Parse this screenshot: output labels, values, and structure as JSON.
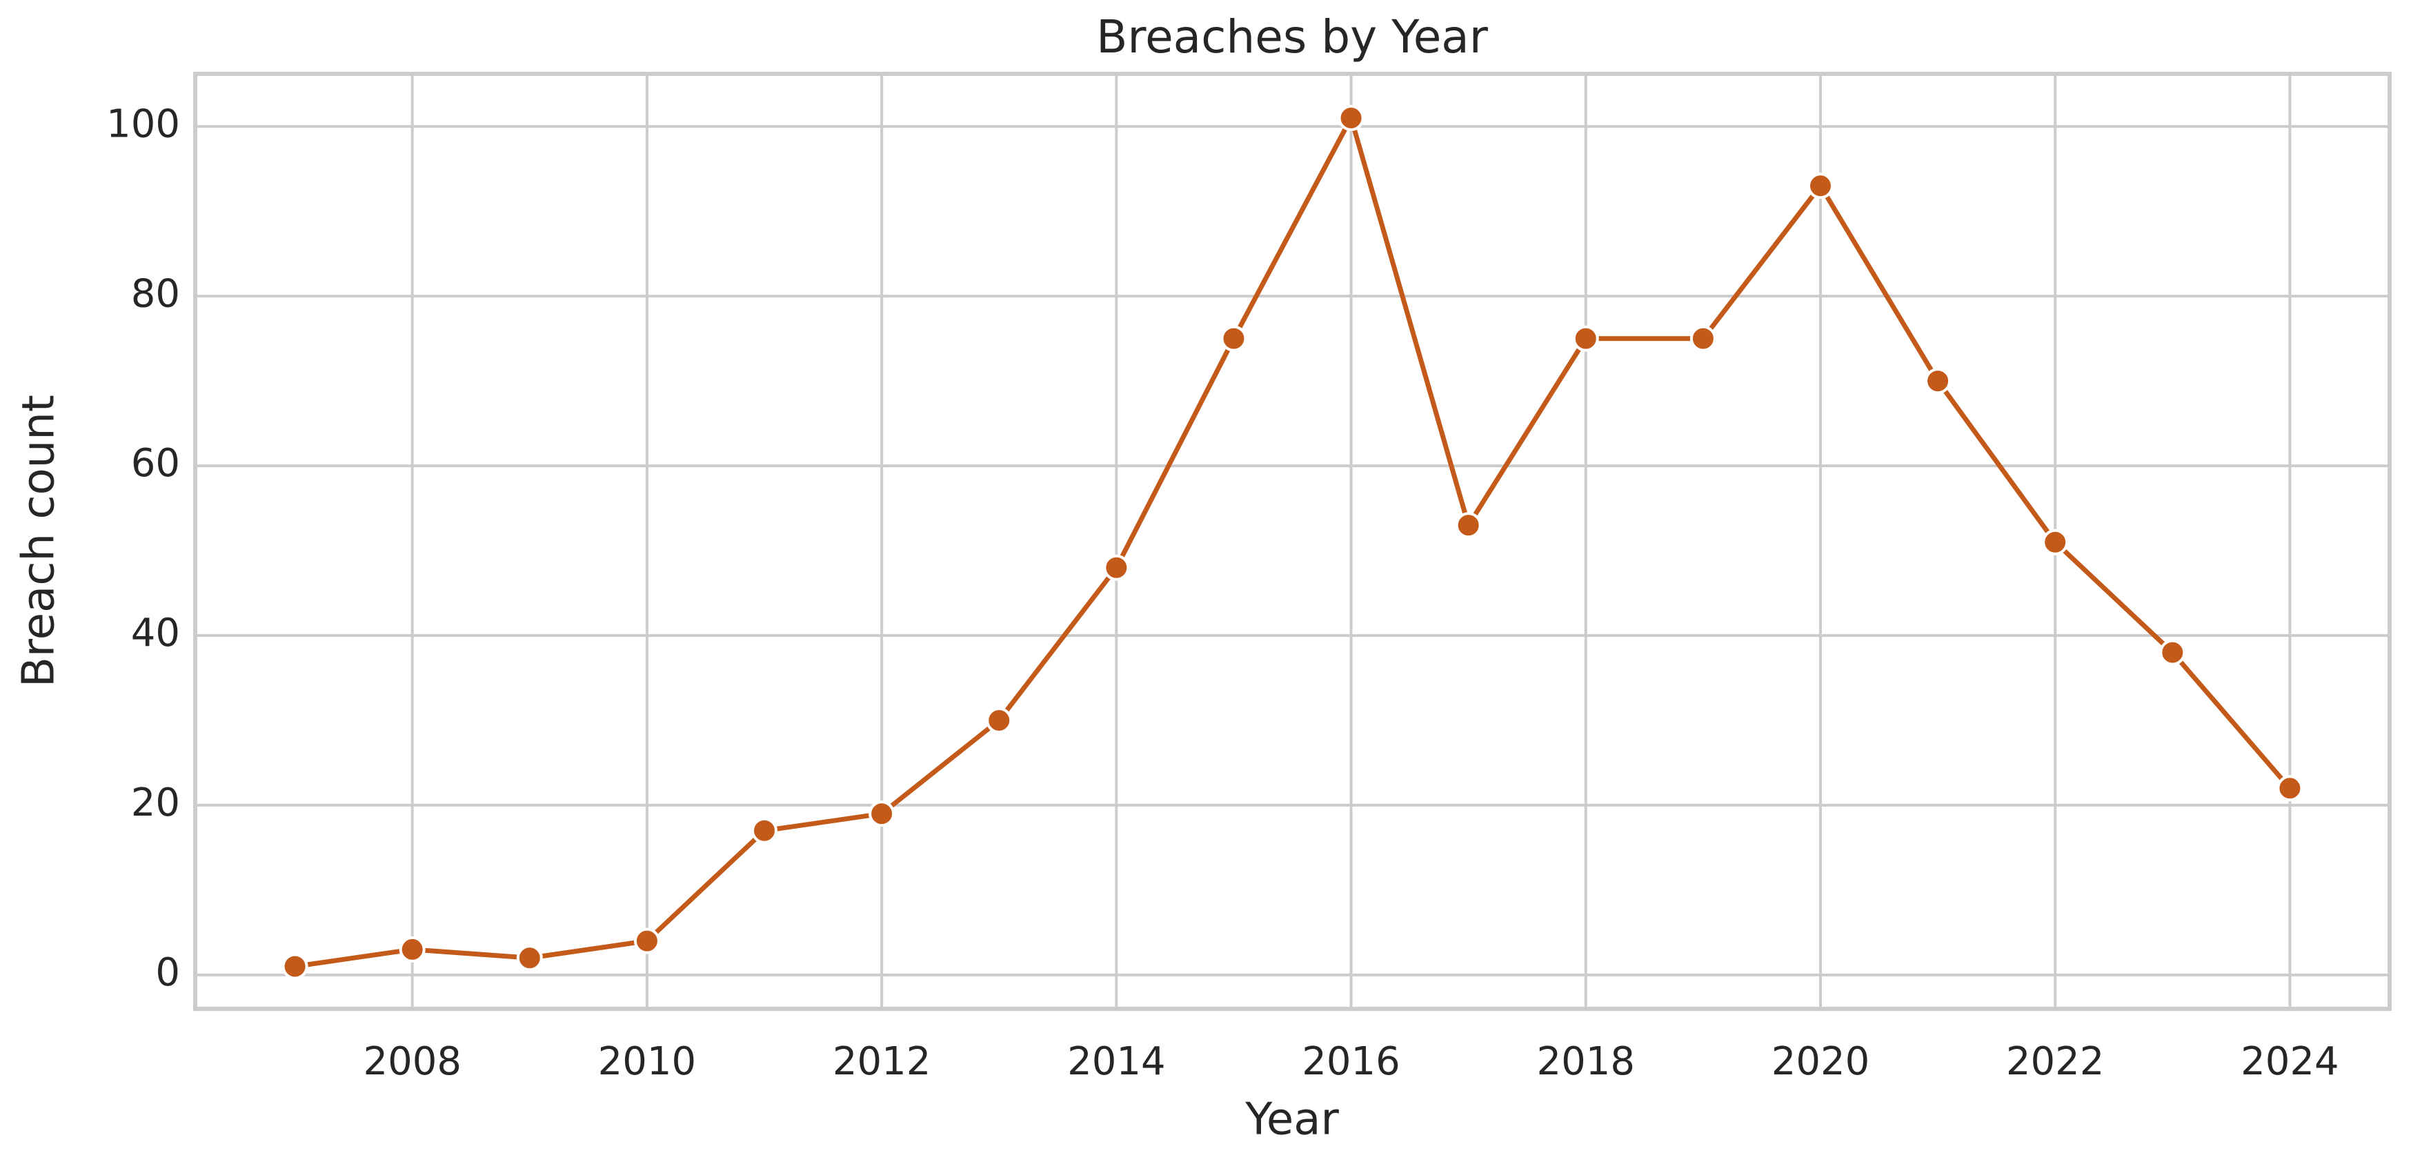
{
  "chart_data": {
    "type": "line",
    "title": "Breaches by Year",
    "x_label": "Year",
    "y_label": "Breach count",
    "x": [
      2007,
      2008,
      2009,
      2010,
      2011,
      2012,
      2013,
      2014,
      2015,
      2016,
      2017,
      2018,
      2019,
      2020,
      2021,
      2022,
      2023,
      2024
    ],
    "series": [
      {
        "name": "Breach count",
        "color": "#c45a1a",
        "values": [
          1,
          3,
          2,
          4,
          17,
          19,
          30,
          48,
          75,
          101,
          53,
          75,
          75,
          93,
          70,
          51,
          38,
          22
        ]
      }
    ],
    "xlim": [
      2006.15,
      2024.85
    ],
    "xticks": [
      2008,
      2010,
      2012,
      2014,
      2016,
      2018,
      2020,
      2022,
      2024
    ],
    "ylim": [
      -4,
      106.2
    ],
    "yticks": [
      0,
      20,
      40,
      60,
      80,
      100
    ],
    "grid": true
  }
}
